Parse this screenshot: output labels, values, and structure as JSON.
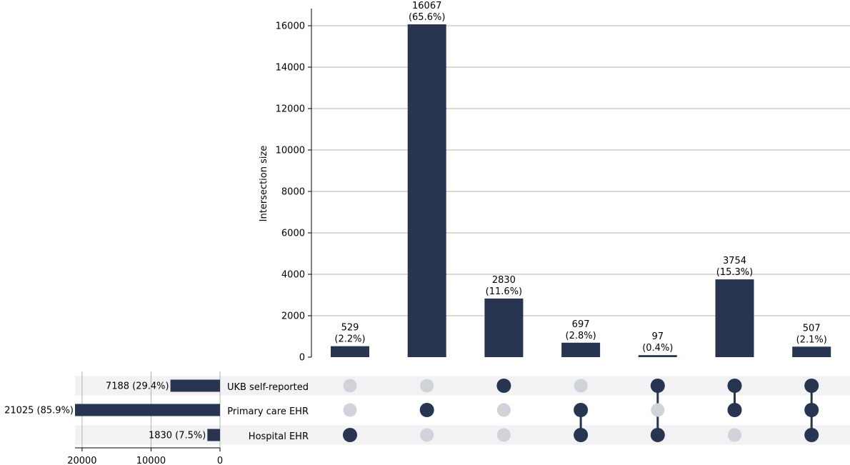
{
  "chart_data": {
    "type": "upset",
    "intersection_axis": {
      "label": "Intersection size",
      "ylim": [
        0,
        16800
      ],
      "ticks": [
        0,
        2000,
        4000,
        6000,
        8000,
        10000,
        12000,
        14000,
        16000
      ],
      "tick_labels": [
        "0",
        "2000",
        "4000",
        "6000",
        "8000",
        "10000",
        "12000",
        "14000",
        "16000"
      ],
      "grid": true
    },
    "sets": [
      {
        "name": "UKB self-reported",
        "size": 7188,
        "label": "7188 (29.4%)"
      },
      {
        "name": "Primary care EHR",
        "size": 21025,
        "label": "21025 (85.9%)"
      },
      {
        "name": "Hospital EHR",
        "size": 1830,
        "label": "1830 (7.5%)"
      }
    ],
    "set_size_axis": {
      "max": 21025,
      "ticks": [
        20000,
        10000,
        0
      ],
      "tick_labels": [
        "20000",
        "10000",
        "0"
      ],
      "grid": true
    },
    "intersections": [
      {
        "members": [
          false,
          false,
          true
        ],
        "value": 529,
        "count_label": "529",
        "pct_label": "(2.2%)"
      },
      {
        "members": [
          false,
          true,
          false
        ],
        "value": 16067,
        "count_label": "16067",
        "pct_label": "(65.6%)"
      },
      {
        "members": [
          true,
          false,
          false
        ],
        "value": 2830,
        "count_label": "2830",
        "pct_label": "(11.6%)"
      },
      {
        "members": [
          false,
          true,
          true
        ],
        "value": 697,
        "count_label": "697",
        "pct_label": "(2.8%)"
      },
      {
        "members": [
          true,
          false,
          true
        ],
        "value": 97,
        "count_label": "97",
        "pct_label": "(0.4%)"
      },
      {
        "members": [
          true,
          true,
          false
        ],
        "value": 3754,
        "count_label": "3754",
        "pct_label": "(15.3%)"
      },
      {
        "members": [
          true,
          true,
          true
        ],
        "value": 507,
        "count_label": "507",
        "pct_label": "(2.1%)"
      }
    ],
    "colors": {
      "bar": "#283550",
      "dot_active": "#283550",
      "dot_inactive": "#d0d3da",
      "stripe": "#f2f2f4",
      "grid": "#b0b0b0"
    }
  }
}
